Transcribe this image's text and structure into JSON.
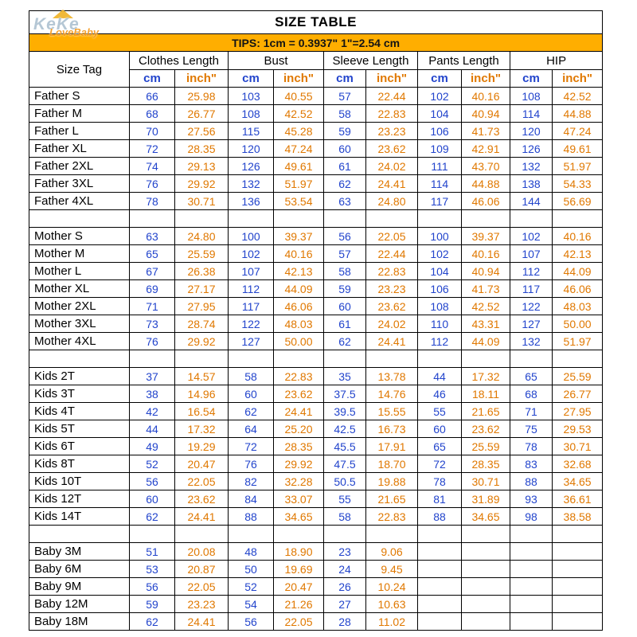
{
  "watermark": {
    "line1": "KeKe",
    "line2": "LoveBaby"
  },
  "colors": {
    "cm_text": "#2244CC",
    "inch_text": "#E07800",
    "tips_bg": "#FFAE00",
    "border": "#000000"
  },
  "chart_data": {
    "type": "table",
    "title": "SIZE TABLE",
    "tips": "TIPS: 1cm = 0.3937\"   1\"=2.54 cm",
    "columns": [
      "Size Tag",
      "Clothes Length",
      "Bust",
      "Sleeve Length",
      "Pants Length",
      "HIP"
    ],
    "sub_columns": [
      "cm",
      "inch\""
    ],
    "groups": [
      {
        "name": "Father",
        "rows": [
          {
            "tag": "Father S",
            "values": [
              "66",
              "25.98",
              "103",
              "40.55",
              "57",
              "22.44",
              "102",
              "40.16",
              "108",
              "42.52"
            ]
          },
          {
            "tag": "Father M",
            "values": [
              "68",
              "26.77",
              "108",
              "42.52",
              "58",
              "22.83",
              "104",
              "40.94",
              "114",
              "44.88"
            ]
          },
          {
            "tag": "Father L",
            "values": [
              "70",
              "27.56",
              "115",
              "45.28",
              "59",
              "23.23",
              "106",
              "41.73",
              "120",
              "47.24"
            ]
          },
          {
            "tag": "Father XL",
            "values": [
              "72",
              "28.35",
              "120",
              "47.24",
              "60",
              "23.62",
              "109",
              "42.91",
              "126",
              "49.61"
            ]
          },
          {
            "tag": "Father 2XL",
            "values": [
              "74",
              "29.13",
              "126",
              "49.61",
              "61",
              "24.02",
              "111",
              "43.70",
              "132",
              "51.97"
            ]
          },
          {
            "tag": "Father 3XL",
            "values": [
              "76",
              "29.92",
              "132",
              "51.97",
              "62",
              "24.41",
              "114",
              "44.88",
              "138",
              "54.33"
            ]
          },
          {
            "tag": "Father 4XL",
            "values": [
              "78",
              "30.71",
              "136",
              "53.54",
              "63",
              "24.80",
              "117",
              "46.06",
              "144",
              "56.69"
            ]
          }
        ]
      },
      {
        "name": "Mother",
        "rows": [
          {
            "tag": "Mother S",
            "values": [
              "63",
              "24.80",
              "100",
              "39.37",
              "56",
              "22.05",
              "100",
              "39.37",
              "102",
              "40.16"
            ]
          },
          {
            "tag": "Mother M",
            "values": [
              "65",
              "25.59",
              "102",
              "40.16",
              "57",
              "22.44",
              "102",
              "40.16",
              "107",
              "42.13"
            ]
          },
          {
            "tag": "Mother L",
            "values": [
              "67",
              "26.38",
              "107",
              "42.13",
              "58",
              "22.83",
              "104",
              "40.94",
              "112",
              "44.09"
            ]
          },
          {
            "tag": "Mother XL",
            "values": [
              "69",
              "27.17",
              "112",
              "44.09",
              "59",
              "23.23",
              "106",
              "41.73",
              "117",
              "46.06"
            ]
          },
          {
            "tag": "Mother 2XL",
            "values": [
              "71",
              "27.95",
              "117",
              "46.06",
              "60",
              "23.62",
              "108",
              "42.52",
              "122",
              "48.03"
            ]
          },
          {
            "tag": "Mother 3XL",
            "values": [
              "73",
              "28.74",
              "122",
              "48.03",
              "61",
              "24.02",
              "110",
              "43.31",
              "127",
              "50.00"
            ]
          },
          {
            "tag": "Mother 4XL",
            "values": [
              "76",
              "29.92",
              "127",
              "50.00",
              "62",
              "24.41",
              "112",
              "44.09",
              "132",
              "51.97"
            ]
          }
        ]
      },
      {
        "name": "Kids",
        "rows": [
          {
            "tag": "Kids 2T",
            "values": [
              "37",
              "14.57",
              "58",
              "22.83",
              "35",
              "13.78",
              "44",
              "17.32",
              "65",
              "25.59"
            ]
          },
          {
            "tag": "Kids 3T",
            "values": [
              "38",
              "14.96",
              "60",
              "23.62",
              "37.5",
              "14.76",
              "46",
              "18.11",
              "68",
              "26.77"
            ]
          },
          {
            "tag": "Kids 4T",
            "values": [
              "42",
              "16.54",
              "62",
              "24.41",
              "39.5",
              "15.55",
              "55",
              "21.65",
              "71",
              "27.95"
            ]
          },
          {
            "tag": "Kids 5T",
            "values": [
              "44",
              "17.32",
              "64",
              "25.20",
              "42.5",
              "16.73",
              "60",
              "23.62",
              "75",
              "29.53"
            ]
          },
          {
            "tag": "Kids 6T",
            "values": [
              "49",
              "19.29",
              "72",
              "28.35",
              "45.5",
              "17.91",
              "65",
              "25.59",
              "78",
              "30.71"
            ]
          },
          {
            "tag": "Kids 8T",
            "values": [
              "52",
              "20.47",
              "76",
              "29.92",
              "47.5",
              "18.70",
              "72",
              "28.35",
              "83",
              "32.68"
            ]
          },
          {
            "tag": "Kids 10T",
            "values": [
              "56",
              "22.05",
              "82",
              "32.28",
              "50.5",
              "19.88",
              "78",
              "30.71",
              "88",
              "34.65"
            ]
          },
          {
            "tag": "Kids 12T",
            "values": [
              "60",
              "23.62",
              "84",
              "33.07",
              "55",
              "21.65",
              "81",
              "31.89",
              "93",
              "36.61"
            ]
          },
          {
            "tag": "Kids 14T",
            "values": [
              "62",
              "24.41",
              "88",
              "34.65",
              "58",
              "22.83",
              "88",
              "34.65",
              "98",
              "38.58"
            ]
          }
        ]
      },
      {
        "name": "Baby",
        "rows": [
          {
            "tag": "Baby 3M",
            "values": [
              "51",
              "20.08",
              "48",
              "18.90",
              "23",
              "9.06",
              "",
              "",
              "",
              ""
            ]
          },
          {
            "tag": "Baby 6M",
            "values": [
              "53",
              "20.87",
              "50",
              "19.69",
              "24",
              "9.45",
              "",
              "",
              "",
              ""
            ]
          },
          {
            "tag": "Baby 9M",
            "values": [
              "56",
              "22.05",
              "52",
              "20.47",
              "26",
              "10.24",
              "",
              "",
              "",
              ""
            ]
          },
          {
            "tag": "Baby 12M",
            "values": [
              "59",
              "23.23",
              "54",
              "21.26",
              "27",
              "10.63",
              "",
              "",
              "",
              ""
            ]
          },
          {
            "tag": "Baby 18M",
            "values": [
              "62",
              "24.41",
              "56",
              "22.05",
              "28",
              "11.02",
              "",
              "",
              "",
              ""
            ]
          }
        ]
      }
    ]
  }
}
